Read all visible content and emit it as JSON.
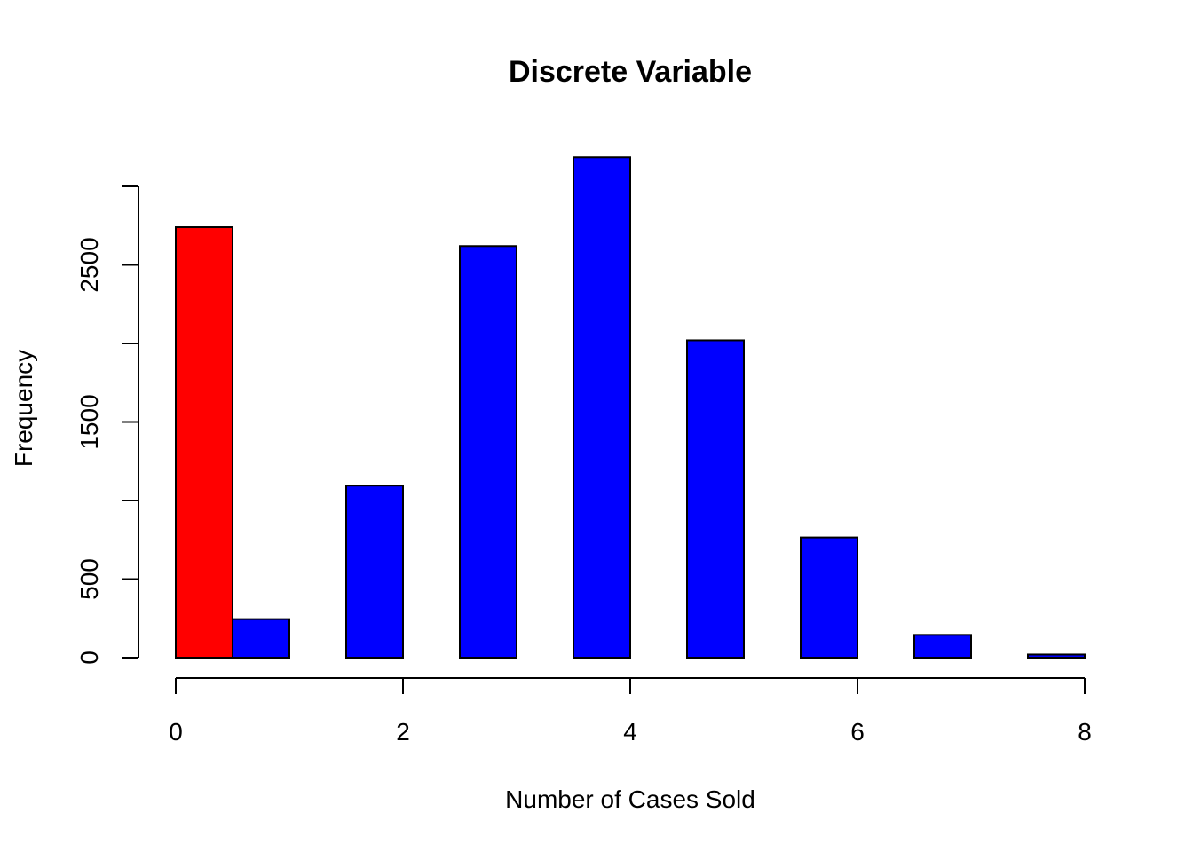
{
  "chart_data": {
    "type": "bar",
    "title": "Discrete Variable",
    "xlabel": "Number of Cases Sold",
    "ylabel": "Frequency",
    "xlim": [
      0,
      8
    ],
    "ylim": [
      0,
      3000
    ],
    "grid": false,
    "x_ticks": [
      0,
      2,
      4,
      6,
      8
    ],
    "y_ticks": [
      0,
      500,
      1000,
      1500,
      2000,
      2500,
      3000
    ],
    "y_tick_labels": [
      "0",
      "500",
      "",
      "1500",
      "",
      "2500",
      ""
    ],
    "bars": [
      {
        "x0": 0.0,
        "x1": 0.5,
        "value": 2740,
        "color": "#ff0000"
      },
      {
        "x0": 0.5,
        "x1": 1.0,
        "value": 245,
        "color": "#0000ff"
      },
      {
        "x0": 1.5,
        "x1": 2.0,
        "value": 1095,
        "color": "#0000ff"
      },
      {
        "x0": 2.5,
        "x1": 3.0,
        "value": 2620,
        "color": "#0000ff"
      },
      {
        "x0": 3.5,
        "x1": 4.0,
        "value": 3185,
        "color": "#0000ff"
      },
      {
        "x0": 4.5,
        "x1": 5.0,
        "value": 2020,
        "color": "#0000ff"
      },
      {
        "x0": 5.5,
        "x1": 6.0,
        "value": 765,
        "color": "#0000ff"
      },
      {
        "x0": 6.5,
        "x1": 7.0,
        "value": 145,
        "color": "#0000ff"
      },
      {
        "x0": 7.5,
        "x1": 8.0,
        "value": 20,
        "color": "#0000ff"
      }
    ]
  }
}
